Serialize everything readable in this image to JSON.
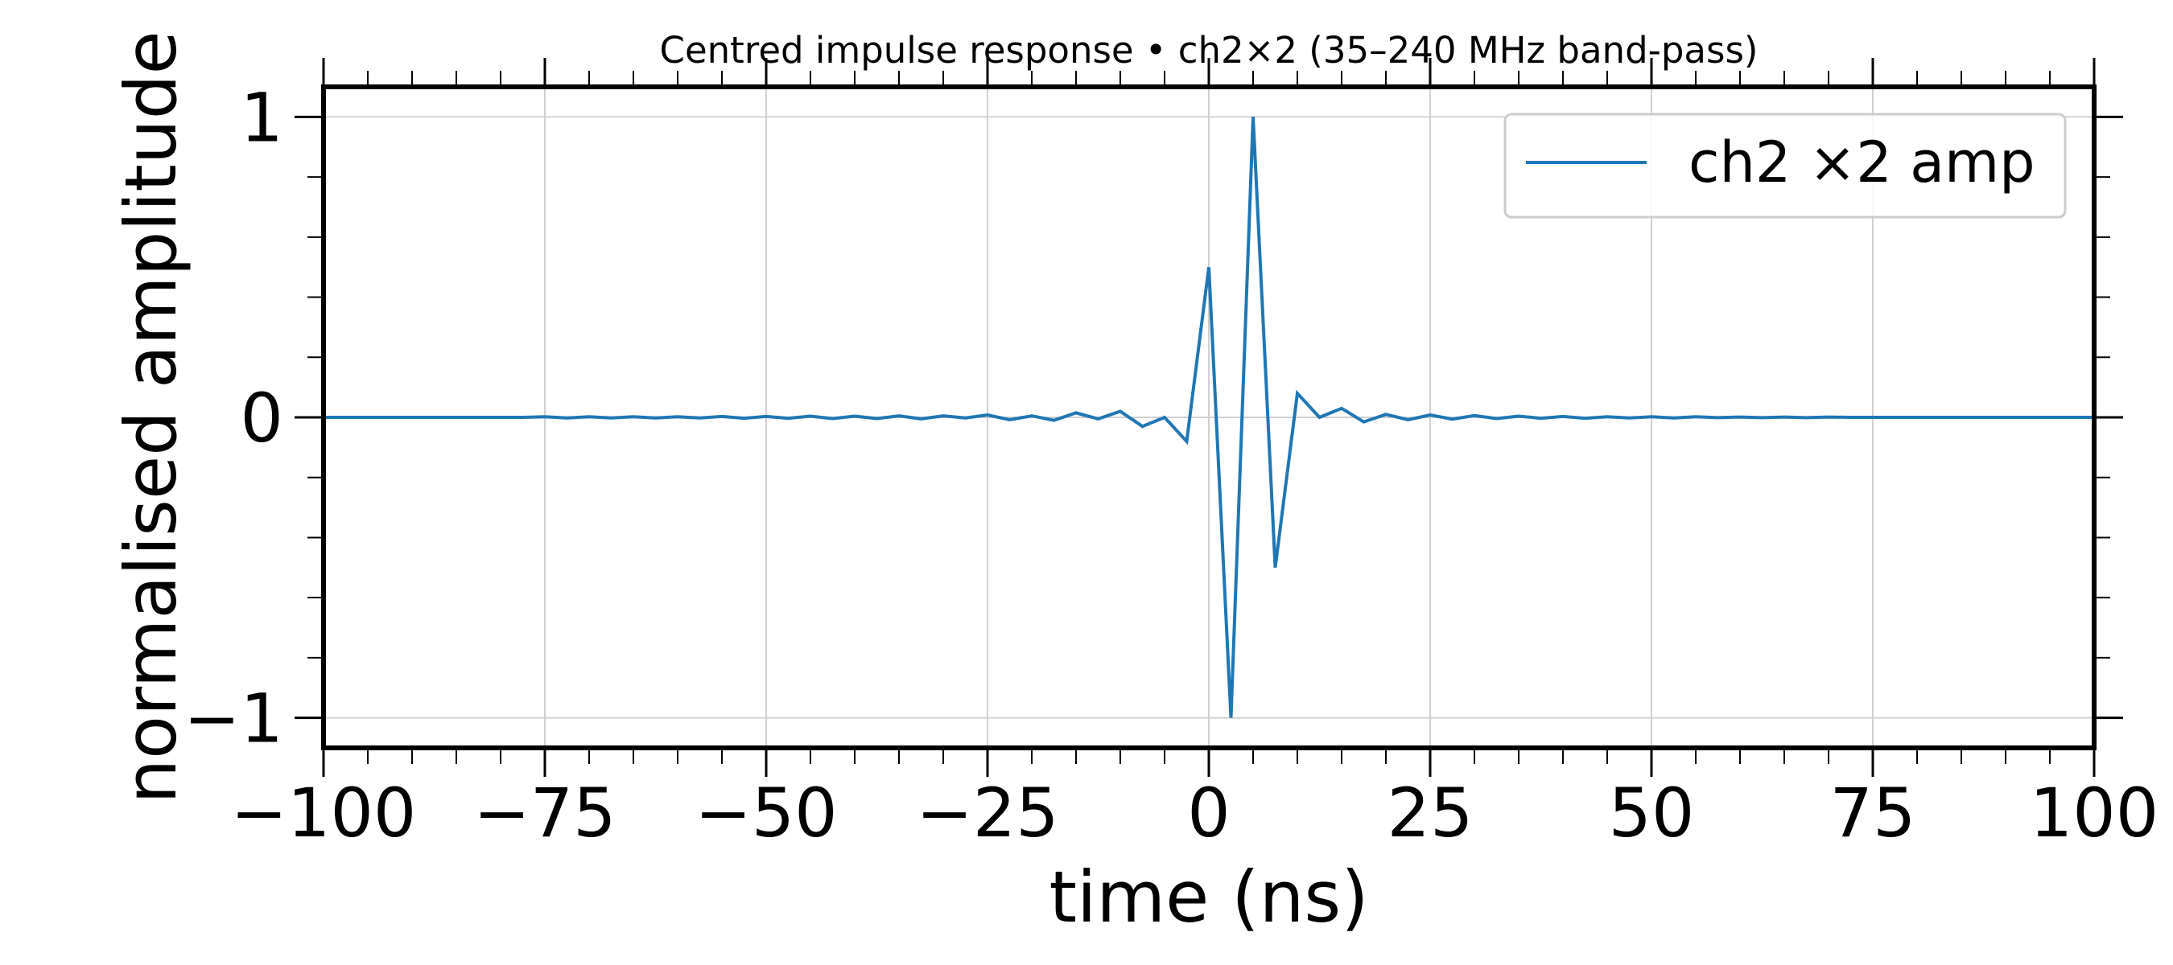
{
  "chart_data": {
    "type": "line",
    "title": "Centred impulse response • ch2×2 (35–240 MHz band-pass)",
    "xlabel": "time (ns)",
    "ylabel": "normalised amplitude",
    "xlim": [
      -100,
      100
    ],
    "ylim": [
      -1.1,
      1.1
    ],
    "x_ticks": [
      -100,
      -75,
      -50,
      -25,
      0,
      25,
      50,
      75,
      100
    ],
    "x_tick_labels": [
      "−100",
      "−75",
      "−50",
      "−25",
      "0",
      "25",
      "50",
      "75",
      "100"
    ],
    "y_ticks": [
      -1,
      0,
      1
    ],
    "y_tick_labels": [
      "−1",
      "0",
      "1"
    ],
    "grid": true,
    "legend_position": "top-right",
    "series_color": "#1f77b4",
    "series": [
      {
        "name": "ch2 ×2 amp",
        "x": [
          -100,
          -97.5,
          -95,
          -92.5,
          -90,
          -87.5,
          -85,
          -82.5,
          -80,
          -77.5,
          -75,
          -72.5,
          -70,
          -67.5,
          -65,
          -62.5,
          -60,
          -57.5,
          -55,
          -52.5,
          -50,
          -47.5,
          -45,
          -42.5,
          -40,
          -37.5,
          -35,
          -32.5,
          -30,
          -27.5,
          -25,
          -22.5,
          -20,
          -17.5,
          -15,
          -12.5,
          -10,
          -7.5,
          -5,
          -2.5,
          0,
          2.5,
          5,
          7.5,
          10,
          12.5,
          15,
          17.5,
          20,
          22.5,
          25,
          27.5,
          30,
          32.5,
          35,
          37.5,
          40,
          42.5,
          45,
          47.5,
          50,
          52.5,
          55,
          57.5,
          60,
          62.5,
          65,
          67.5,
          70,
          72.5,
          75,
          77.5,
          80,
          82.5,
          85,
          87.5,
          90,
          92.5,
          95,
          97.5,
          100
        ],
        "y": [
          0,
          0,
          0,
          0,
          0,
          0,
          0,
          0,
          0,
          0,
          0.002,
          -0.002,
          0.002,
          -0.002,
          0.002,
          -0.002,
          0.002,
          -0.002,
          0.003,
          -0.003,
          0.003,
          -0.003,
          0.004,
          -0.004,
          0.004,
          -0.004,
          0.005,
          -0.005,
          0.005,
          -0.002,
          0.008,
          -0.008,
          0.005,
          -0.01,
          0.015,
          -0.005,
          0.02,
          -0.03,
          0.0,
          -0.08,
          0.5,
          -1.0,
          1.0,
          -0.5,
          0.08,
          0.0,
          0.03,
          -0.015,
          0.01,
          -0.008,
          0.008,
          -0.006,
          0.006,
          -0.004,
          0.004,
          -0.003,
          0.003,
          -0.003,
          0.002,
          -0.002,
          0.002,
          -0.002,
          0.002,
          -0.001,
          0.001,
          -0.001,
          0.001,
          -0.001,
          0.001,
          0,
          0,
          0,
          0,
          0,
          0,
          0,
          0,
          0,
          0,
          0,
          0
        ]
      }
    ]
  }
}
